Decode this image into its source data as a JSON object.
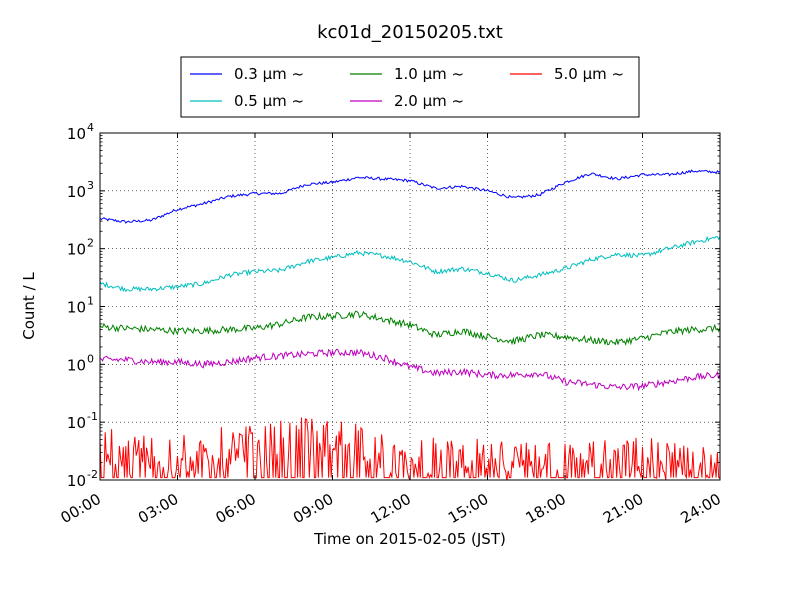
{
  "chart_data": {
    "type": "line",
    "title": "kc01d_20150205.txt",
    "xlabel": "Time on 2015-02-05 (JST)",
    "ylabel": "Count / L",
    "yscale": "log",
    "ylim": [
      0.01,
      10000
    ],
    "xlim": [
      "00:00",
      "24:00"
    ],
    "grid": true,
    "legend_position": "top-center",
    "x_ticks": [
      "00:00",
      "03:00",
      "06:00",
      "09:00",
      "12:00",
      "15:00",
      "18:00",
      "21:00",
      "24:00"
    ],
    "y_ticks": [
      {
        "base": "10",
        "exp": "-2",
        "value": 0.01
      },
      {
        "base": "10",
        "exp": "-1",
        "value": 0.1
      },
      {
        "base": "10",
        "exp": "0",
        "value": 1
      },
      {
        "base": "10",
        "exp": "1",
        "value": 10
      },
      {
        "base": "10",
        "exp": "2",
        "value": 100
      },
      {
        "base": "10",
        "exp": "3",
        "value": 1000
      },
      {
        "base": "10",
        "exp": "4",
        "value": 10000
      }
    ],
    "x_hours": [
      0,
      1,
      2,
      3,
      4,
      5,
      6,
      7,
      8,
      9,
      10,
      11,
      12,
      13,
      14,
      15,
      16,
      17,
      18,
      19,
      20,
      21,
      22,
      23,
      24
    ],
    "series": [
      {
        "name": "0.3 μm  ~",
        "color": "#0000ff",
        "values": [
          330,
          290,
          310,
          480,
          600,
          800,
          900,
          900,
          1300,
          1400,
          1700,
          1600,
          1500,
          1100,
          1200,
          1000,
          750,
          850,
          1400,
          2000,
          1600,
          1900,
          1900,
          2200,
          2100
        ]
      },
      {
        "name": "0.5 μm  ~",
        "color": "#00bfbf",
        "values": [
          25,
          20,
          20,
          22,
          25,
          35,
          40,
          42,
          60,
          70,
          85,
          75,
          60,
          40,
          45,
          38,
          28,
          35,
          45,
          65,
          80,
          75,
          100,
          130,
          160
        ]
      },
      {
        "name": "1.0 μm  ~",
        "color": "#008000",
        "values": [
          4.5,
          4.2,
          4.0,
          3.8,
          3.8,
          4.0,
          4.2,
          5.0,
          6.5,
          6.8,
          7.5,
          6.0,
          4.8,
          3.2,
          3.8,
          3.0,
          2.5,
          3.2,
          3.0,
          2.6,
          2.4,
          2.8,
          3.6,
          4.0,
          4.2
        ]
      },
      {
        "name": "2.0 μm  ~",
        "color": "#bf00bf",
        "values": [
          1.2,
          1.2,
          1.1,
          1.1,
          1.0,
          1.1,
          1.3,
          1.4,
          1.5,
          1.6,
          1.6,
          1.3,
          0.9,
          0.7,
          0.75,
          0.65,
          0.65,
          0.7,
          0.5,
          0.45,
          0.4,
          0.42,
          0.5,
          0.6,
          0.65
        ]
      },
      {
        "name": "5.0 μm  ~",
        "color": "#ff0000",
        "values": [
          0.03,
          0.02,
          0.025,
          0.02,
          0.02,
          0.03,
          0.03,
          0.035,
          0.04,
          0.04,
          0.04,
          0.02,
          0.015,
          0.018,
          0.015,
          0.018,
          0.015,
          0.02,
          0.015,
          0.018,
          0.015,
          0.02,
          0.015,
          0.02,
          0.018
        ]
      }
    ]
  }
}
